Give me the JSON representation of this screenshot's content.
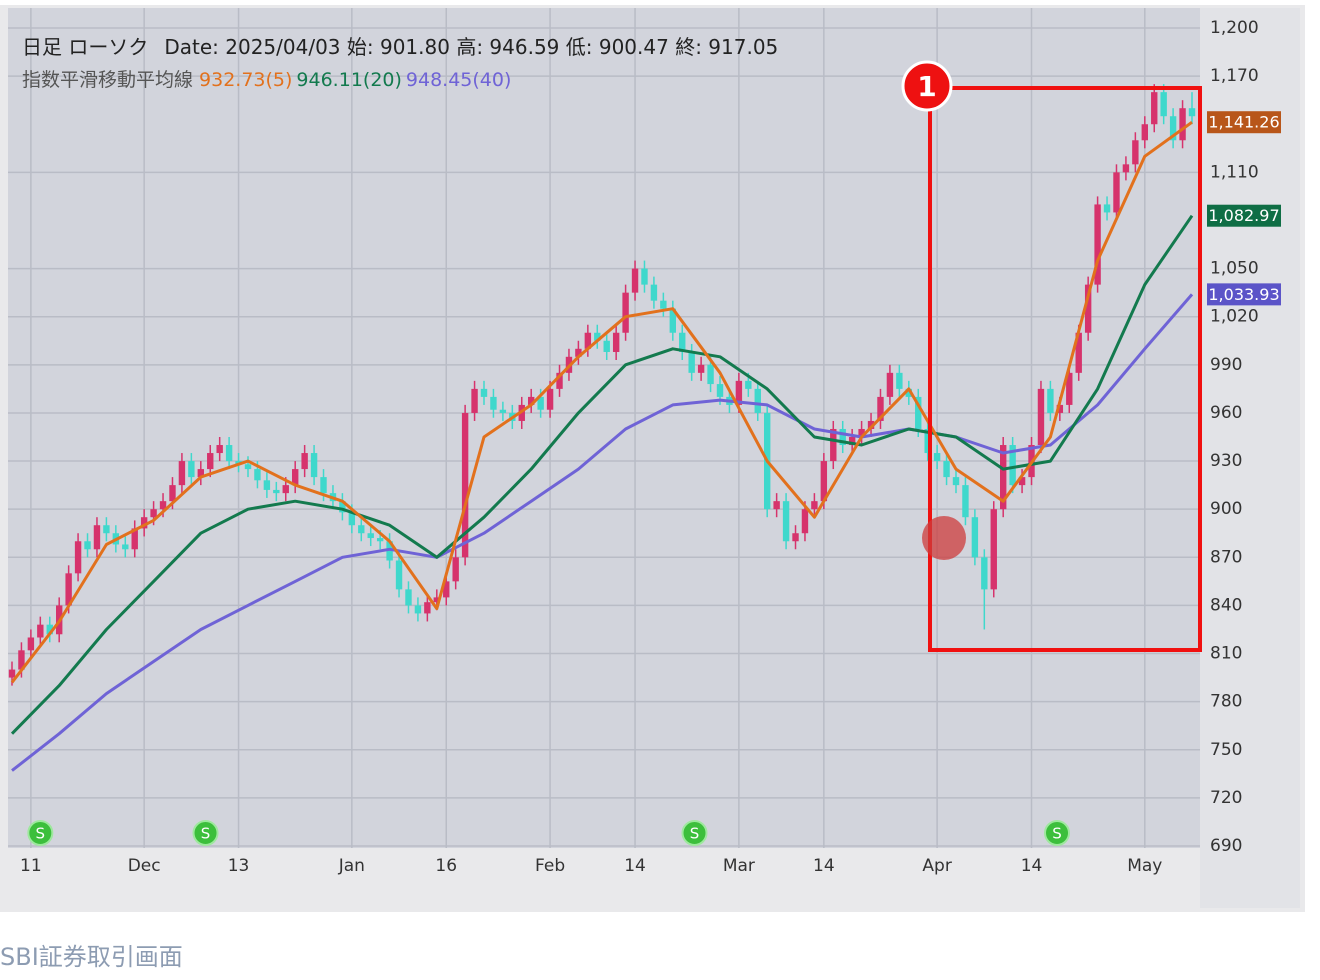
{
  "chart_data": {
    "type": "candlestick",
    "title": "日足 ローソク",
    "info": "Date: 2025/04/03 始: 901.80 高: 946.59 低: 900.47 終: 917.05",
    "ma_label": "指数平滑移動平均線",
    "caption": "SBI証券取引画面",
    "annotation": "1",
    "up_color": "#d6336c",
    "down_color": "#3fd8cc",
    "grid": true,
    "ylim": [
      690,
      1200
    ],
    "yticks": [
      690,
      720,
      750,
      780,
      810,
      840,
      870,
      900,
      930,
      960,
      990,
      {
        "value": 1020,
        "label": "1,020"
      },
      {
        "value": 1050,
        "label": "1,050"
      },
      {
        "value": 1110,
        "label": "1,110"
      },
      {
        "value": 1170,
        "label": "1,170"
      },
      {
        "value": 1200,
        "label": "1,200"
      }
    ],
    "categories": [
      null,
      null,
      "11",
      null,
      null,
      null,
      null,
      null,
      null,
      null,
      null,
      null,
      null,
      null,
      "Dec",
      null,
      null,
      null,
      null,
      null,
      null,
      null,
      null,
      null,
      "13",
      null,
      null,
      null,
      null,
      null,
      null,
      null,
      null,
      null,
      null,
      null,
      "Jan",
      null,
      null,
      null,
      null,
      null,
      null,
      null,
      null,
      null,
      "16",
      null,
      null,
      null,
      null,
      null,
      null,
      null,
      null,
      null,
      null,
      "Feb",
      null,
      null,
      null,
      null,
      null,
      null,
      null,
      null,
      "14",
      null,
      null,
      null,
      null,
      null,
      null,
      null,
      null,
      null,
      null,
      "Mar",
      null,
      null,
      null,
      null,
      null,
      null,
      null,
      null,
      "14",
      null,
      null,
      null,
      null,
      null,
      null,
      null,
      null,
      null,
      null,
      null,
      "Apr",
      null,
      null,
      null,
      null,
      null,
      null,
      null,
      null,
      null,
      "14",
      null,
      null,
      null,
      null,
      null,
      null,
      null,
      null,
      null,
      null,
      null,
      "May",
      null,
      null,
      null,
      null,
      null
    ],
    "open": [
      795,
      800,
      812,
      820,
      828,
      822,
      840,
      860,
      880,
      875,
      890,
      885,
      878,
      875,
      888,
      895,
      900,
      905,
      915,
      930,
      920,
      925,
      935,
      940,
      930,
      928,
      925,
      918,
      912,
      910,
      915,
      925,
      935,
      920,
      910,
      905,
      898,
      890,
      885,
      882,
      880,
      868,
      850,
      840,
      835,
      842,
      845,
      855,
      870,
      960,
      975,
      970,
      962,
      960,
      955,
      965,
      970,
      962,
      975,
      985,
      995,
      1000,
      1010,
      1005,
      998,
      1010,
      1035,
      1050,
      1040,
      1030,
      1025,
      1010,
      998,
      985,
      990,
      978,
      970,
      965,
      980,
      975,
      960,
      900,
      905,
      880,
      885,
      900,
      905,
      930,
      950,
      940,
      945,
      950,
      955,
      970,
      985,
      975,
      970,
      950,
      935,
      930,
      920,
      915,
      895,
      870,
      850,
      900,
      940,
      915,
      920,
      940,
      975,
      960,
      965,
      985,
      1010,
      1040,
      1090,
      1085,
      1110,
      1115,
      1130,
      1140,
      1160,
      1145,
      1130,
      1150
    ],
    "high": [
      805,
      817,
      825,
      833,
      833,
      845,
      865,
      885,
      885,
      895,
      895,
      890,
      883,
      893,
      900,
      905,
      910,
      920,
      935,
      935,
      930,
      940,
      945,
      945,
      935,
      933,
      930,
      923,
      917,
      920,
      930,
      940,
      940,
      925,
      915,
      910,
      903,
      895,
      890,
      887,
      885,
      873,
      855,
      845,
      847,
      850,
      860,
      875,
      965,
      980,
      980,
      975,
      967,
      965,
      970,
      975,
      975,
      980,
      990,
      1000,
      1005,
      1015,
      1015,
      1010,
      1015,
      1040,
      1055,
      1055,
      1045,
      1035,
      1030,
      1015,
      1003,
      995,
      995,
      983,
      975,
      985,
      985,
      980,
      965,
      910,
      910,
      890,
      905,
      910,
      935,
      955,
      955,
      950,
      955,
      960,
      975,
      990,
      990,
      980,
      975,
      955,
      940,
      935,
      925,
      920,
      900,
      875,
      905,
      945,
      945,
      925,
      945,
      980,
      980,
      970,
      990,
      1015,
      1045,
      1095,
      1095,
      1115,
      1120,
      1135,
      1145,
      1165,
      1165,
      1150,
      1155,
      1160
    ],
    "low": [
      790,
      795,
      807,
      815,
      817,
      817,
      835,
      855,
      870,
      870,
      880,
      873,
      870,
      870,
      883,
      890,
      895,
      900,
      910,
      915,
      915,
      920,
      930,
      925,
      923,
      920,
      913,
      907,
      905,
      905,
      910,
      920,
      915,
      905,
      900,
      893,
      885,
      880,
      877,
      875,
      863,
      845,
      835,
      830,
      830,
      837,
      840,
      850,
      865,
      955,
      965,
      957,
      955,
      950,
      950,
      960,
      957,
      957,
      970,
      980,
      990,
      995,
      1000,
      993,
      993,
      1005,
      1030,
      1035,
      1025,
      1020,
      1005,
      993,
      980,
      980,
      973,
      965,
      960,
      960,
      970,
      955,
      895,
      895,
      875,
      875,
      880,
      895,
      900,
      925,
      935,
      935,
      940,
      945,
      950,
      965,
      970,
      965,
      945,
      930,
      925,
      915,
      910,
      890,
      865,
      825,
      845,
      895,
      910,
      910,
      915,
      935,
      955,
      955,
      960,
      980,
      1005,
      1035,
      1080,
      1080,
      1105,
      1110,
      1125,
      1135,
      1140,
      1125,
      1125,
      1140
    ],
    "close": [
      800,
      812,
      820,
      828,
      822,
      840,
      860,
      880,
      875,
      890,
      885,
      878,
      875,
      888,
      895,
      900,
      905,
      915,
      930,
      920,
      925,
      935,
      940,
      930,
      928,
      925,
      918,
      912,
      910,
      915,
      925,
      935,
      920,
      910,
      905,
      898,
      890,
      885,
      882,
      880,
      868,
      850,
      840,
      835,
      842,
      845,
      855,
      870,
      960,
      975,
      970,
      962,
      960,
      955,
      965,
      970,
      962,
      975,
      985,
      995,
      1000,
      1010,
      1005,
      998,
      1010,
      1035,
      1050,
      1040,
      1030,
      1025,
      1010,
      998,
      985,
      990,
      978,
      970,
      965,
      980,
      975,
      960,
      900,
      905,
      880,
      885,
      900,
      905,
      930,
      950,
      940,
      945,
      950,
      955,
      970,
      985,
      975,
      970,
      950,
      935,
      930,
      920,
      915,
      895,
      870,
      850,
      900,
      940,
      915,
      920,
      940,
      975,
      960,
      965,
      985,
      1010,
      1040,
      1090,
      1085,
      1110,
      1115,
      1130,
      1140,
      1160,
      1145,
      1130,
      1150,
      1145
    ],
    "moving_averages": [
      {
        "name": "932.73(5)",
        "color": "#e2711d",
        "label_color": "#b8561a",
        "end_label": "1,141.26",
        "x": [
          0,
          5,
          10,
          15,
          20,
          25,
          30,
          35,
          40,
          45,
          50,
          55,
          60,
          65,
          70,
          75,
          80,
          85,
          90,
          95,
          100,
          105,
          110,
          115,
          120,
          125
        ],
        "values": [
          792,
          830,
          878,
          893,
          920,
          930,
          915,
          905,
          880,
          838,
          945,
          965,
          995,
          1020,
          1025,
          985,
          930,
          895,
          945,
          975,
          925,
          905,
          945,
          1055,
          1120,
          1141.26
        ]
      },
      {
        "name": "946.11(20)",
        "color": "#137a4e",
        "label_color": "#0f6e45",
        "end_label": "1,082.97",
        "x": [
          0,
          5,
          10,
          15,
          20,
          25,
          30,
          35,
          40,
          45,
          50,
          55,
          60,
          65,
          70,
          75,
          80,
          85,
          90,
          95,
          100,
          105,
          110,
          115,
          120,
          125
        ],
        "values": [
          760,
          790,
          825,
          855,
          885,
          900,
          905,
          900,
          890,
          870,
          895,
          925,
          960,
          990,
          1000,
          995,
          975,
          945,
          940,
          950,
          945,
          925,
          930,
          975,
          1040,
          1082.97
        ]
      },
      {
        "name": "948.45(40)",
        "color": "#6f63d6",
        "label_color": "#5b54c8",
        "end_label": "1,033.93",
        "x": [
          0,
          5,
          10,
          15,
          20,
          25,
          30,
          35,
          40,
          45,
          50,
          55,
          60,
          65,
          70,
          75,
          80,
          85,
          90,
          95,
          100,
          105,
          110,
          115,
          120,
          125
        ],
        "values": [
          737,
          760,
          785,
          805,
          825,
          840,
          855,
          870,
          875,
          870,
          885,
          905,
          925,
          950,
          965,
          968,
          965,
          950,
          945,
          950,
          945,
          935,
          940,
          965,
          1000,
          1033.93
        ]
      }
    ],
    "signals": [
      {
        "x": 3,
        "label": "S"
      },
      {
        "x": 20.5,
        "label": "S"
      },
      {
        "x": 72.3,
        "label": "S"
      },
      {
        "x": 110.7,
        "label": "S"
      }
    ]
  }
}
